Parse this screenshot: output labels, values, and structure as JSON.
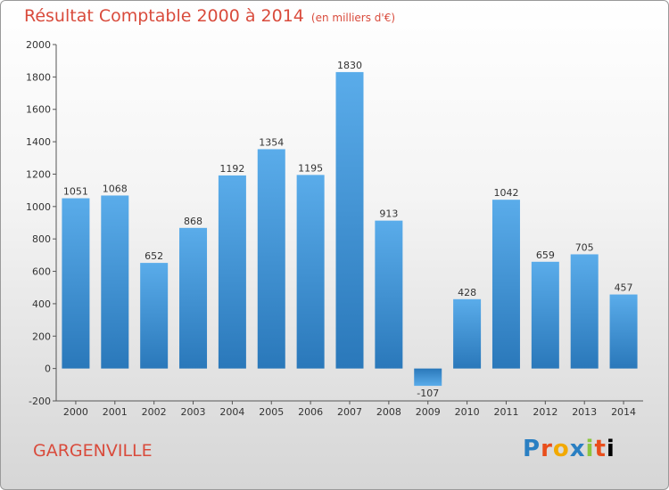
{
  "chart_data": {
    "type": "bar",
    "title": "Résultat Comptable 2000 à 2014",
    "subtitle": "(en milliers d'€)",
    "categories": [
      "2000",
      "2001",
      "2002",
      "2003",
      "2004",
      "2005",
      "2006",
      "2007",
      "2008",
      "2009",
      "2010",
      "2011",
      "2012",
      "2013",
      "2014"
    ],
    "values": [
      1051,
      1068,
      652,
      868,
      1192,
      1354,
      1195,
      1830,
      913,
      -107,
      428,
      1042,
      659,
      705,
      457
    ],
    "ylim": [
      -200,
      2000
    ],
    "yticks": [
      -200,
      0,
      200,
      400,
      600,
      800,
      1000,
      1200,
      1400,
      1600,
      1800,
      2000
    ],
    "xlabel": "",
    "ylabel": "",
    "grid": false,
    "bar_color": "#3f93d6"
  },
  "footer": {
    "city": "GARGENVILLE",
    "logo_letters": [
      "P",
      "r",
      "o",
      "x",
      "i",
      "t",
      "i"
    ]
  }
}
